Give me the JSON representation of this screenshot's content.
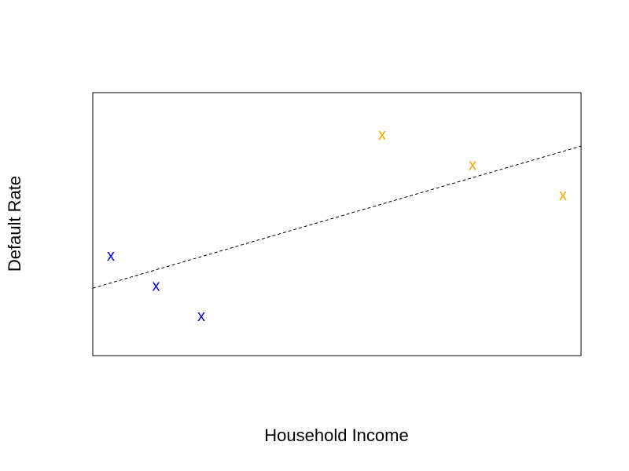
{
  "chart_data": {
    "type": "scatter",
    "title": "",
    "xlabel": "Household Income",
    "ylabel": "Default Rate",
    "xlim": [
      0,
      10.8
    ],
    "ylim": [
      0,
      8.7
    ],
    "grid": false,
    "marker": "x",
    "series": [
      {
        "color": "#0000ff",
        "points": [
          {
            "x": 0.4,
            "y": 3.3
          },
          {
            "x": 1.4,
            "y": 2.3
          },
          {
            "x": 2.4,
            "y": 1.3
          }
        ]
      },
      {
        "color": "#ffa500",
        "points": [
          {
            "x": 6.4,
            "y": 7.3
          },
          {
            "x": 8.4,
            "y": 6.3
          },
          {
            "x": 10.4,
            "y": 5.3
          }
        ]
      }
    ],
    "trendline": {
      "style": "dashed",
      "color": "#000000",
      "x": [
        0,
        10.8
      ],
      "y": [
        2.23,
        6.93
      ]
    }
  }
}
